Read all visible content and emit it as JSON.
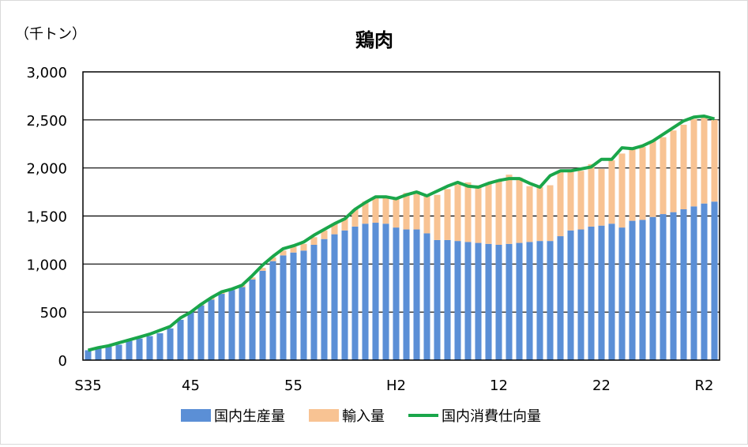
{
  "chart_data": {
    "type": "bar",
    "stacked": true,
    "title": "鶏肉",
    "unit_label": "（千トン）",
    "xlabel": "",
    "ylabel": "",
    "ylim": [
      0,
      3000
    ],
    "yticks": [
      0,
      500,
      1000,
      1500,
      2000,
      2500,
      3000
    ],
    "ytick_labels": [
      "0",
      "500",
      "1,000",
      "1,500",
      "2,000",
      "2,500",
      "3,000"
    ],
    "grid": true,
    "legend_position": "bottom",
    "xtick_labels": [
      {
        "index": 0,
        "label": "S35"
      },
      {
        "index": 10,
        "label": "45"
      },
      {
        "index": 20,
        "label": "55"
      },
      {
        "index": 30,
        "label": "H2"
      },
      {
        "index": 40,
        "label": "12"
      },
      {
        "index": 50,
        "label": "22"
      },
      {
        "index": 60,
        "label": "R2"
      }
    ],
    "series": [
      {
        "name": "国内生産量",
        "type": "bar",
        "color": "#5b8fd6",
        "values": [
          103,
          120,
          140,
          160,
          200,
          225,
          250,
          280,
          330,
          420,
          500,
          570,
          630,
          690,
          730,
          760,
          840,
          930,
          1030,
          1090,
          1120,
          1140,
          1200,
          1260,
          1310,
          1350,
          1390,
          1420,
          1430,
          1420,
          1380,
          1360,
          1360,
          1320,
          1250,
          1250,
          1240,
          1230,
          1220,
          1210,
          1200,
          1210,
          1220,
          1230,
          1240,
          1240,
          1290,
          1350,
          1360,
          1390,
          1400,
          1420,
          1380,
          1450,
          1460,
          1490,
          1520,
          1540,
          1570,
          1600,
          1630,
          1650
        ]
      },
      {
        "name": "輸入量",
        "type": "bar",
        "color": "#f8c393",
        "values": [
          0,
          0,
          0,
          0,
          0,
          0,
          0,
          0,
          0,
          0,
          0,
          10,
          20,
          20,
          20,
          20,
          20,
          30,
          40,
          50,
          60,
          70,
          80,
          90,
          110,
          130,
          180,
          230,
          260,
          280,
          310,
          380,
          400,
          390,
          470,
          530,
          590,
          620,
          600,
          630,
          680,
          720,
          680,
          580,
          560,
          580,
          670,
          630,
          610,
          650,
          590,
          660,
          770,
          750,
          760,
          790,
          800,
          850,
          880,
          910,
          900,
          850
        ]
      },
      {
        "name": "国内消費仕向量",
        "type": "line",
        "color": "#1aa64a",
        "values": [
          103,
          130,
          150,
          180,
          210,
          240,
          270,
          310,
          350,
          440,
          500,
          580,
          650,
          710,
          740,
          780,
          880,
          990,
          1080,
          1160,
          1190,
          1230,
          1300,
          1360,
          1420,
          1470,
          1570,
          1640,
          1700,
          1700,
          1680,
          1720,
          1750,
          1710,
          1760,
          1810,
          1850,
          1810,
          1800,
          1840,
          1870,
          1890,
          1890,
          1840,
          1800,
          1920,
          1970,
          1970,
          1990,
          2010,
          2090,
          2090,
          2210,
          2200,
          2230,
          2280,
          2350,
          2420,
          2490,
          2530,
          2540,
          2510
        ]
      }
    ]
  }
}
